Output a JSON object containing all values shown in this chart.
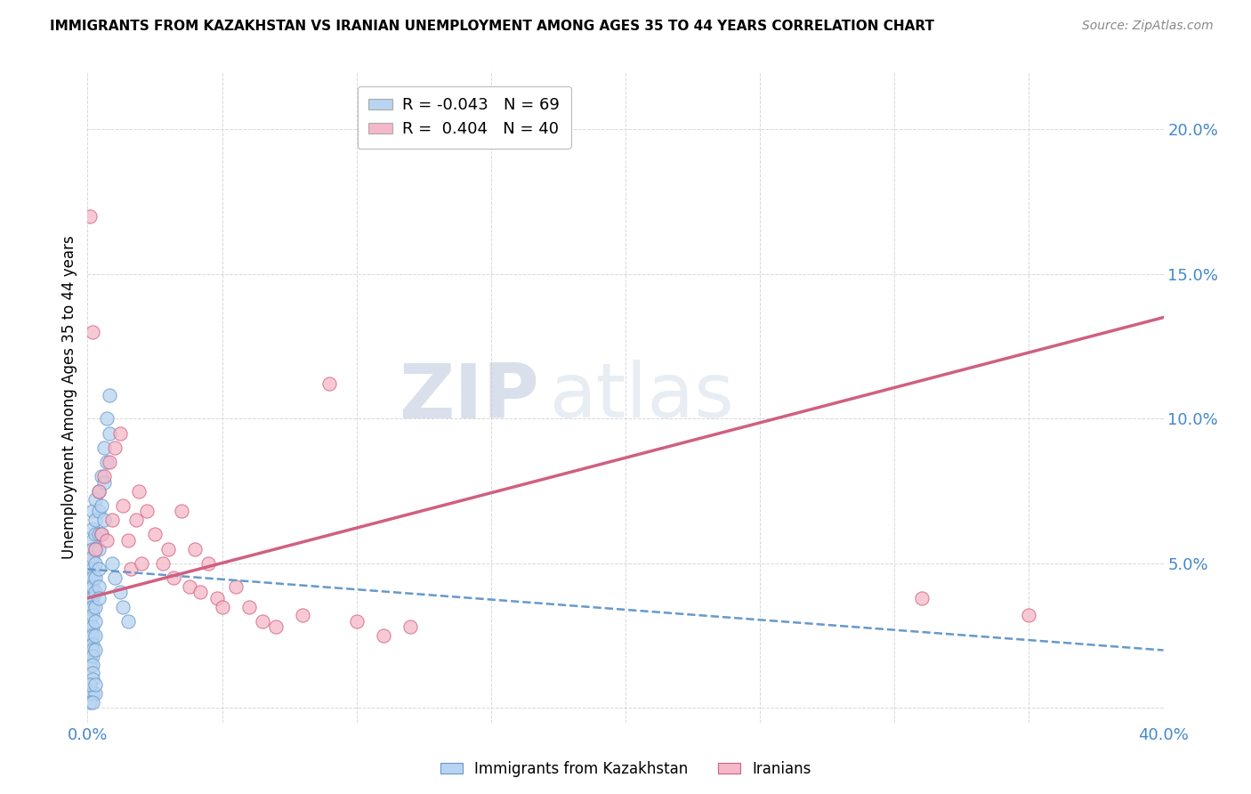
{
  "title": "IMMIGRANTS FROM KAZAKHSTAN VS IRANIAN UNEMPLOYMENT AMONG AGES 35 TO 44 YEARS CORRELATION CHART",
  "source": "Source: ZipAtlas.com",
  "ylabel": "Unemployment Among Ages 35 to 44 years",
  "xlim": [
    0,
    0.4
  ],
  "ylim": [
    -0.005,
    0.22
  ],
  "x_ticks": [
    0.0,
    0.05,
    0.1,
    0.15,
    0.2,
    0.25,
    0.3,
    0.35,
    0.4
  ],
  "x_tick_labels": [
    "0.0%",
    "",
    "",
    "",
    "",
    "",
    "",
    "",
    "40.0%"
  ],
  "y_ticks": [
    0.0,
    0.05,
    0.1,
    0.15,
    0.2
  ],
  "y_tick_labels": [
    "",
    "5.0%",
    "10.0%",
    "15.0%",
    "20.0%"
  ],
  "legend_entries": [
    {
      "label": "R = -0.043   N = 69",
      "color": "#b8d4f0"
    },
    {
      "label": "R =  0.404   N = 40",
      "color": "#f5b8c8"
    }
  ],
  "watermark_zip": "ZIP",
  "watermark_atlas": "atlas",
  "background_color": "#ffffff",
  "grid_color": "#d8d8d8",
  "scatter_kazakhstan": {
    "color": "#b8d4f0",
    "edge_color": "#6699cc",
    "size": 120,
    "x": [
      0.001,
      0.001,
      0.001,
      0.001,
      0.001,
      0.001,
      0.001,
      0.001,
      0.001,
      0.001,
      0.002,
      0.002,
      0.002,
      0.002,
      0.002,
      0.002,
      0.002,
      0.002,
      0.002,
      0.002,
      0.002,
      0.002,
      0.002,
      0.002,
      0.002,
      0.002,
      0.002,
      0.002,
      0.002,
      0.003,
      0.003,
      0.003,
      0.003,
      0.003,
      0.003,
      0.003,
      0.003,
      0.003,
      0.003,
      0.003,
      0.004,
      0.004,
      0.004,
      0.004,
      0.004,
      0.004,
      0.004,
      0.005,
      0.005,
      0.005,
      0.006,
      0.006,
      0.006,
      0.007,
      0.007,
      0.008,
      0.008,
      0.009,
      0.01,
      0.012,
      0.013,
      0.015,
      0.001,
      0.002,
      0.003,
      0.001,
      0.002,
      0.001,
      0.003
    ],
    "y": [
      0.05,
      0.045,
      0.042,
      0.038,
      0.035,
      0.03,
      0.025,
      0.02,
      0.018,
      0.015,
      0.068,
      0.062,
      0.058,
      0.055,
      0.052,
      0.048,
      0.045,
      0.042,
      0.038,
      0.035,
      0.032,
      0.028,
      0.025,
      0.022,
      0.02,
      0.018,
      0.015,
      0.012,
      0.01,
      0.072,
      0.065,
      0.06,
      0.055,
      0.05,
      0.045,
      0.04,
      0.035,
      0.03,
      0.025,
      0.02,
      0.075,
      0.068,
      0.06,
      0.055,
      0.048,
      0.042,
      0.038,
      0.08,
      0.07,
      0.06,
      0.09,
      0.078,
      0.065,
      0.1,
      0.085,
      0.108,
      0.095,
      0.05,
      0.045,
      0.04,
      0.035,
      0.03,
      0.005,
      0.005,
      0.005,
      0.002,
      0.002,
      0.008,
      0.008
    ]
  },
  "scatter_iranians": {
    "color": "#f5b8c8",
    "edge_color": "#d06080",
    "size": 120,
    "x": [
      0.001,
      0.002,
      0.003,
      0.004,
      0.005,
      0.006,
      0.007,
      0.008,
      0.009,
      0.01,
      0.012,
      0.013,
      0.015,
      0.016,
      0.018,
      0.019,
      0.02,
      0.022,
      0.025,
      0.028,
      0.03,
      0.032,
      0.035,
      0.038,
      0.04,
      0.042,
      0.045,
      0.048,
      0.05,
      0.055,
      0.06,
      0.065,
      0.07,
      0.08,
      0.09,
      0.1,
      0.11,
      0.12,
      0.31,
      0.35
    ],
    "y": [
      0.17,
      0.13,
      0.055,
      0.075,
      0.06,
      0.08,
      0.058,
      0.085,
      0.065,
      0.09,
      0.095,
      0.07,
      0.058,
      0.048,
      0.065,
      0.075,
      0.05,
      0.068,
      0.06,
      0.05,
      0.055,
      0.045,
      0.068,
      0.042,
      0.055,
      0.04,
      0.05,
      0.038,
      0.035,
      0.042,
      0.035,
      0.03,
      0.028,
      0.032,
      0.112,
      0.03,
      0.025,
      0.028,
      0.038,
      0.032
    ]
  },
  "trendline_kazakhstan": {
    "color": "#6699cc",
    "linestyle": "--",
    "x_start": 0.0,
    "x_end": 0.4,
    "y_start": 0.048,
    "y_end": 0.02
  },
  "trendline_iranians": {
    "color": "#d06080",
    "linestyle": "-",
    "x_start": 0.0,
    "x_end": 0.4,
    "y_start": 0.038,
    "y_end": 0.135
  }
}
